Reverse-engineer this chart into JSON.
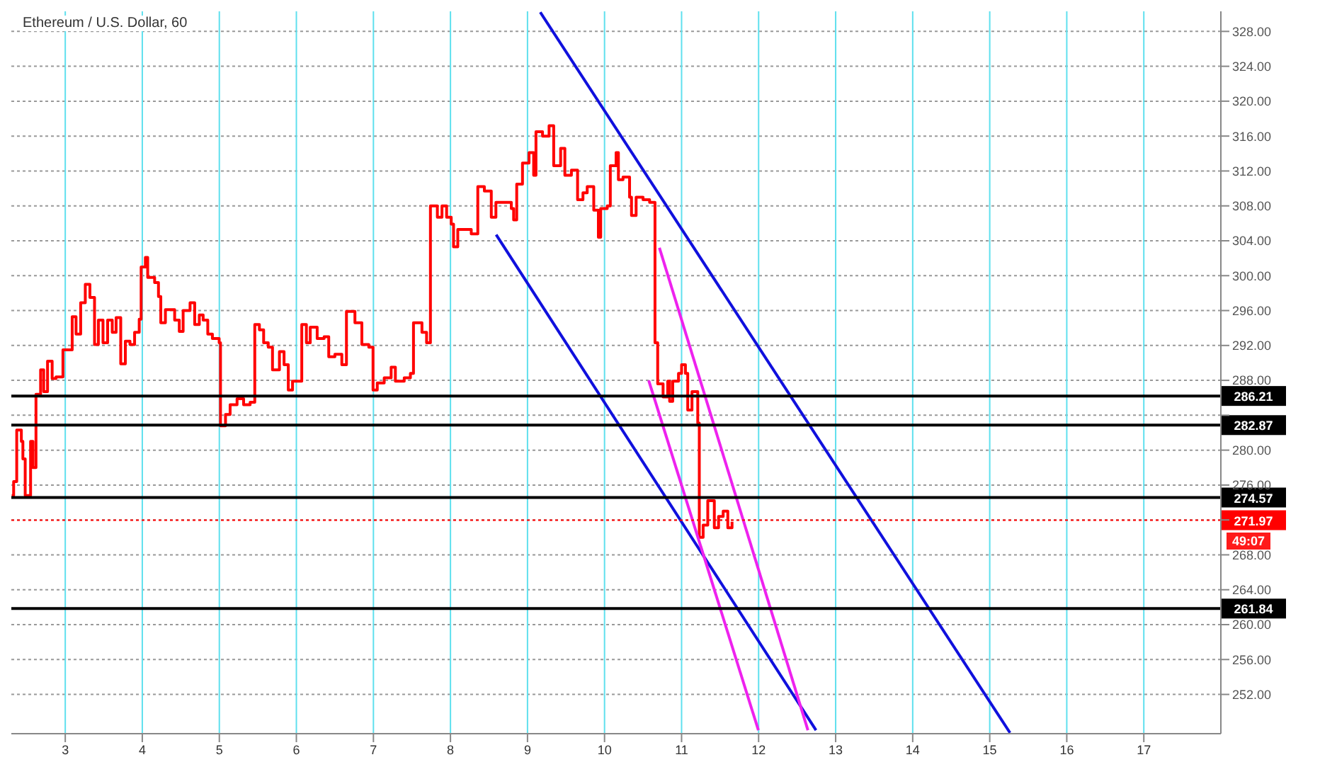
{
  "chart_data": {
    "type": "step",
    "title": "Ethereum / U.S. Dollar, 60",
    "xlim": [
      2.3,
      18.0
    ],
    "xticks": [
      3,
      4,
      5,
      6,
      7,
      8,
      9,
      10,
      11,
      12,
      13,
      14,
      15,
      16,
      17
    ],
    "ylim": [
      247.5,
      330.3
    ],
    "yticks": [
      {
        "value": 252,
        "label": "252.00"
      },
      {
        "value": 256,
        "label": "256.00"
      },
      {
        "value": 260,
        "label": "260.00"
      },
      {
        "value": 264,
        "label": "264.00"
      },
      {
        "value": 268,
        "label": "268.00"
      },
      {
        "value": 272,
        "label": null
      },
      {
        "value": 276,
        "label": "276.00"
      },
      {
        "value": 280,
        "label": "280.00"
      },
      {
        "value": 284,
        "label": null
      },
      {
        "value": 288,
        "label": "288.00"
      },
      {
        "value": 292,
        "label": "292.00"
      },
      {
        "value": 296,
        "label": "296.00"
      },
      {
        "value": 300,
        "label": "300.00"
      },
      {
        "value": 304,
        "label": "304.00"
      },
      {
        "value": 308,
        "label": "308.00"
      },
      {
        "value": 312,
        "label": "312.00"
      },
      {
        "value": 316,
        "label": "316.00"
      },
      {
        "value": 320,
        "label": "320.00"
      },
      {
        "value": 324,
        "label": "324.00"
      },
      {
        "value": 328,
        "label": "328.00"
      }
    ],
    "grid": true,
    "legend": false,
    "marker": "none",
    "series": [
      {
        "color": "#ff0000",
        "x": [
          2.305,
          2.33,
          2.37,
          2.43,
          2.45,
          2.48,
          2.53,
          2.55,
          2.58,
          2.62,
          2.68,
          2.72,
          2.77,
          2.83,
          2.88,
          2.97,
          3.03,
          3.09,
          3.14,
          3.2,
          3.26,
          3.32,
          3.38,
          3.43,
          3.49,
          3.55,
          3.61,
          3.66,
          3.72,
          3.78,
          3.84,
          3.9,
          3.96,
          3.985,
          4.04,
          4.07,
          4.16,
          4.21,
          4.24,
          4.3,
          4.36,
          4.42,
          4.48,
          4.53,
          4.62,
          4.68,
          4.74,
          4.79,
          4.85,
          4.91,
          4.998,
          5.015,
          5.08,
          5.14,
          5.23,
          5.315,
          5.4,
          5.46,
          5.52,
          5.575,
          5.635,
          5.69,
          5.78,
          5.84,
          5.895,
          5.95,
          6.04,
          6.07,
          6.13,
          6.18,
          6.27,
          6.36,
          6.42,
          6.5,
          6.59,
          6.65,
          6.735,
          6.76,
          6.85,
          6.94,
          6.995,
          7.05,
          7.14,
          7.23,
          7.285,
          7.4,
          7.48,
          7.52,
          7.6,
          7.63,
          7.69,
          7.74,
          7.83,
          7.89,
          7.95,
          8.01,
          8.04,
          8.095,
          8.18,
          8.27,
          8.355,
          8.44,
          8.53,
          8.59,
          8.7,
          8.79,
          8.82,
          8.86,
          8.935,
          9.02,
          9.08,
          9.11,
          9.195,
          9.28,
          9.34,
          9.43,
          9.485,
          9.57,
          9.65,
          9.72,
          9.775,
          9.83,
          9.86,
          9.92,
          9.95,
          10.035,
          10.075,
          10.15,
          10.18,
          10.24,
          10.325,
          10.35,
          10.41,
          10.5,
          10.585,
          10.64,
          10.655,
          10.69,
          10.76,
          10.82,
          10.845,
          10.885,
          10.96,
          11.0,
          11.05,
          11.08,
          11.135,
          11.18,
          11.21,
          11.23,
          11.28,
          11.34,
          11.395,
          11.425,
          11.48,
          11.54,
          11.6,
          11.655
        ],
        "values": [
          274.8,
          276.4,
          282.3,
          281,
          279,
          274.8,
          274.8,
          281,
          278,
          286.4,
          289.2,
          286.7,
          290.2,
          288.2,
          288.4,
          291.5,
          291.5,
          295.3,
          293.3,
          296.9,
          299,
          297.5,
          292.1,
          294.9,
          292.3,
          294.9,
          293.5,
          295.2,
          289.9,
          292.5,
          292.1,
          293.5,
          295,
          301,
          302.1,
          299.8,
          299.2,
          297.6,
          294.6,
          296.1,
          296.1,
          294.9,
          293.6,
          296,
          296.9,
          294.4,
          295.5,
          294.9,
          293.3,
          292.8,
          292.3,
          282.8,
          284.1,
          285.2,
          285.9,
          285.2,
          285.5,
          294.4,
          293.8,
          292.3,
          291.8,
          289.2,
          291.3,
          289.8,
          286.9,
          287.9,
          287.9,
          294.4,
          292.3,
          294.1,
          292.8,
          293,
          290.7,
          291,
          289.8,
          295.9,
          295.9,
          294.6,
          292.1,
          291.8,
          286.9,
          287.7,
          288.3,
          289.5,
          287.9,
          288.3,
          288.8,
          294.6,
          294.6,
          293.5,
          292.3,
          308,
          306.7,
          308,
          306.7,
          305.9,
          303.3,
          305.3,
          305.3,
          304.8,
          310.2,
          309.7,
          306.7,
          308.4,
          308.4,
          307.7,
          306.4,
          310.5,
          312.9,
          314.1,
          311.5,
          316.5,
          316,
          317.2,
          312.6,
          314.6,
          311.5,
          312.1,
          308.7,
          309.5,
          310.2,
          310.2,
          307.5,
          304.4,
          307.7,
          308,
          312.6,
          314.1,
          311,
          311.3,
          309,
          306.9,
          309,
          308.7,
          308.4,
          308.4,
          292.3,
          287.6,
          286.1,
          287.9,
          285.6,
          287.9,
          288.8,
          289.8,
          288.8,
          284.6,
          286.7,
          286.7,
          283.1,
          270,
          271.4,
          274.2,
          274.2,
          271.1,
          272.4,
          273,
          271.1,
          271.8
        ]
      },
      {
        "type": "line",
        "color": "#1010dd",
        "x": [
          9.166,
          15.263
        ],
        "values": [
          330.2,
          247.6
        ]
      },
      {
        "type": "line",
        "color": "#1010dd",
        "x": [
          8.593,
          12.745
        ],
        "values": [
          304.7,
          247.9
        ]
      },
      {
        "type": "line",
        "color": "#ee22ee",
        "x": [
          10.573,
          11.997
        ],
        "values": [
          288.0,
          247.9
        ]
      },
      {
        "type": "line",
        "color": "#ee22ee",
        "x": [
          10.712,
          12.64
        ],
        "values": [
          303.2,
          247.9
        ]
      }
    ],
    "ref_lines": [
      {
        "axis": "y",
        "value": 286.21,
        "label": "286.21",
        "color": "#000000",
        "line_style": "solid"
      },
      {
        "axis": "y",
        "value": 282.87,
        "label": "282.87",
        "color": "#000000",
        "line_style": "solid"
      },
      {
        "axis": "y",
        "value": 274.57,
        "label": "274.57",
        "color": "#000000",
        "line_style": "solid"
      },
      {
        "axis": "y",
        "value": 271.97,
        "label": "271.97",
        "color": "#ff0000",
        "line_style": "dotted"
      },
      {
        "axis": "y",
        "value": 261.84,
        "label": "261.84",
        "color": "#000000",
        "line_style": "solid"
      }
    ],
    "annotations": [
      "49:07"
    ]
  }
}
